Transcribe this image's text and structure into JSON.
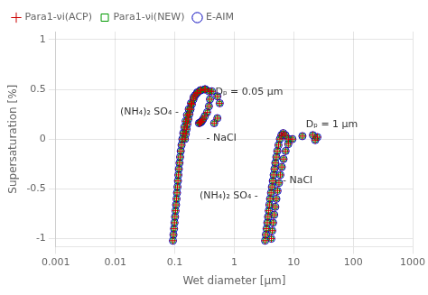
{
  "chart_data": {
    "type": "scatter",
    "xlabel": "Wet diameter [μm]",
    "ylabel": "Supersaturation [%]",
    "log": "x",
    "xlim": [
      0.001,
      1000
    ],
    "xticks": [
      0.001,
      0.01,
      0.1,
      1,
      10,
      100,
      1000
    ],
    "ylim": [
      -1.08,
      1.08
    ],
    "yticks": [
      -1,
      -0.5,
      0,
      0.5,
      1
    ],
    "grid": true,
    "legend": "upper left",
    "x": [
      0.093,
      0.095,
      0.097,
      0.099,
      0.101,
      0.103,
      0.105,
      0.107,
      0.109,
      0.111,
      0.113,
      0.115,
      0.117,
      0.12,
      0.123,
      0.126,
      0.13,
      0.134,
      0.139,
      0.145,
      0.152,
      0.161,
      0.172,
      0.187,
      0.207,
      0.235,
      0.275,
      0.325,
      0.375,
      0.39,
      0.375,
      0.35,
      0.32,
      0.3,
      0.285,
      0.275,
      0.265,
      0.255,
      0.148,
      0.153,
      0.158,
      0.163,
      0.169,
      0.176,
      0.184,
      0.194,
      0.206,
      0.22,
      0.24,
      0.27,
      0.32,
      0.42,
      0.52,
      0.57,
      0.52,
      0.46,
      3.3,
      3.4,
      3.5,
      3.6,
      3.7,
      3.8,
      3.9,
      4.0,
      4.15,
      4.3,
      4.45,
      4.6,
      4.75,
      4.9,
      5.1,
      5.3,
      5.55,
      5.85,
      6.2,
      6.65,
      7.25,
      8.1,
      4.2,
      4.35,
      4.5,
      4.7,
      4.9,
      5.1,
      5.35,
      5.65,
      5.95,
      6.3,
      6.75,
      7.3,
      8.1,
      9.5,
      14.0,
      21.0,
      25.0,
      23.0
    ],
    "series": [
      {
        "name": "E-AIM",
        "color": "#0000bb",
        "marker": "circle",
        "values": [
          -1.02,
          -0.96,
          -0.9,
          -0.84,
          -0.78,
          -0.72,
          -0.66,
          -0.6,
          -0.54,
          -0.48,
          -0.42,
          -0.36,
          -0.3,
          -0.24,
          -0.18,
          -0.12,
          -0.06,
          0.0,
          0.06,
          0.12,
          0.18,
          0.24,
          0.3,
          0.36,
          0.42,
          0.46,
          0.49,
          0.5,
          0.48,
          0.4,
          0.33,
          0.27,
          0.23,
          0.2,
          0.18,
          0.17,
          0.165,
          0.16,
          0.0,
          0.05,
          0.1,
          0.15,
          0.2,
          0.25,
          0.3,
          0.35,
          0.4,
          0.44,
          0.47,
          0.49,
          0.5,
          0.48,
          0.43,
          0.36,
          0.21,
          0.16,
          -1.02,
          -0.96,
          -0.9,
          -0.84,
          -0.78,
          -0.72,
          -0.66,
          -0.6,
          -0.54,
          -0.48,
          -0.42,
          -0.36,
          -0.3,
          -0.24,
          -0.18,
          -0.12,
          -0.06,
          0.0,
          0.04,
          0.06,
          0.04,
          0.0,
          -1.0,
          -0.92,
          -0.84,
          -0.76,
          -0.68,
          -0.6,
          -0.52,
          -0.44,
          -0.36,
          -0.28,
          -0.2,
          -0.12,
          -0.05,
          0.0,
          0.03,
          0.04,
          0.02,
          -0.01
        ]
      },
      {
        "name": "Para1-νi(ACP)",
        "color": "#cc0000",
        "marker": "plus",
        "values": [
          -1.02,
          -0.96,
          -0.9,
          -0.84,
          -0.78,
          -0.72,
          -0.66,
          -0.6,
          -0.54,
          -0.48,
          -0.42,
          -0.36,
          -0.3,
          -0.24,
          -0.18,
          -0.12,
          -0.06,
          0.0,
          0.06,
          0.12,
          0.18,
          0.24,
          0.3,
          0.36,
          0.42,
          0.46,
          0.49,
          0.5,
          0.48,
          0.4,
          0.33,
          0.27,
          0.23,
          0.2,
          0.18,
          0.17,
          0.165,
          0.16,
          0.0,
          0.05,
          0.1,
          0.15,
          0.2,
          0.25,
          0.3,
          0.35,
          0.4,
          0.44,
          0.47,
          0.49,
          0.5,
          0.48,
          0.43,
          0.36,
          0.21,
          0.16,
          -1.02,
          -0.96,
          -0.9,
          -0.84,
          -0.78,
          -0.72,
          -0.66,
          -0.6,
          -0.54,
          -0.48,
          -0.42,
          -0.36,
          -0.3,
          -0.24,
          -0.18,
          -0.12,
          -0.06,
          0.0,
          0.04,
          0.06,
          0.04,
          0.0,
          -1.0,
          -0.92,
          -0.84,
          -0.76,
          -0.68,
          -0.6,
          -0.52,
          -0.44,
          -0.36,
          -0.28,
          -0.2,
          -0.12,
          -0.05,
          0.0,
          0.03,
          0.04,
          0.02,
          -0.01
        ]
      },
      {
        "name": "Para1-νi(NEW)",
        "color": "#009900",
        "marker": "square",
        "values": [
          -1.02,
          -0.96,
          -0.9,
          -0.84,
          -0.78,
          -0.72,
          -0.66,
          -0.6,
          -0.54,
          -0.48,
          -0.42,
          -0.36,
          -0.3,
          -0.24,
          -0.18,
          -0.12,
          -0.06,
          0.0,
          0.06,
          0.12,
          0.18,
          0.24,
          0.3,
          0.36,
          0.42,
          0.46,
          0.49,
          0.5,
          0.48,
          0.4,
          0.33,
          0.27,
          0.23,
          0.2,
          0.18,
          0.17,
          0.165,
          0.16,
          0.0,
          0.05,
          0.1,
          0.15,
          0.2,
          0.25,
          0.3,
          0.35,
          0.4,
          0.44,
          0.47,
          0.49,
          0.5,
          0.48,
          0.43,
          0.36,
          0.21,
          0.16,
          -1.02,
          -0.96,
          -0.9,
          -0.84,
          -0.78,
          -0.72,
          -0.66,
          -0.6,
          -0.54,
          -0.48,
          -0.42,
          -0.36,
          -0.3,
          -0.24,
          -0.18,
          -0.12,
          -0.06,
          0.0,
          0.04,
          0.06,
          0.04,
          0.0,
          -1.0,
          -0.92,
          -0.84,
          -0.76,
          -0.68,
          -0.6,
          -0.52,
          -0.44,
          -0.36,
          -0.28,
          -0.2,
          -0.12,
          -0.05,
          0.0,
          0.03,
          0.04,
          0.02,
          -0.01
        ]
      }
    ],
    "annotations": [
      {
        "text": "Dₚ = 0.05 μm",
        "x": 0.48,
        "y": 0.47
      },
      {
        "text": "(NH₄)₂ SO₄ -",
        "x": 0.012,
        "y": 0.27
      },
      {
        "text": "- NaCl",
        "x": 0.34,
        "y": 0.01
      },
      {
        "text": "(NH₄)₂ SO₄ -",
        "x": 0.26,
        "y": -0.57
      },
      {
        "text": "Dₚ = 1 μm",
        "x": 16,
        "y": 0.15
      },
      {
        "text": "- NaCl",
        "x": 6.5,
        "y": -0.42
      }
    ]
  }
}
